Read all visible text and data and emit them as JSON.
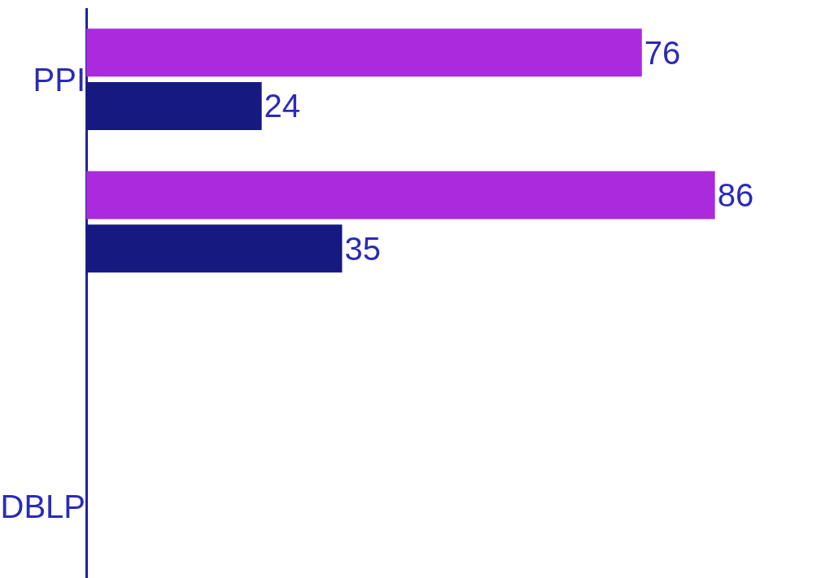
{
  "chart_data": {
    "type": "bar",
    "orientation": "horizontal",
    "relative": false,
    "data_labels": true,
    "categories": [
      "PPI",
      null,
      null,
      "DBLP"
    ],
    "series": [
      {
        "color": "#a92bdd",
        "values": [
          76,
          86,
          null,
          null
        ]
      },
      {
        "color": "#161a80",
        "values": [
          24,
          35,
          null,
          null
        ]
      }
    ]
  }
}
